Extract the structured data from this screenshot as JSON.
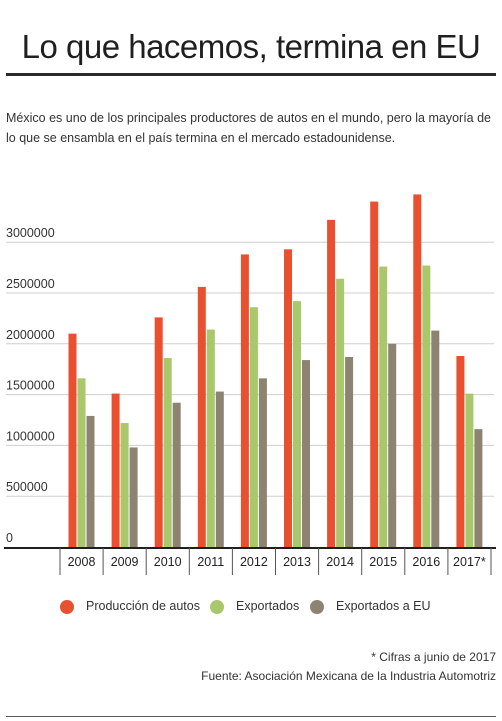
{
  "title": "Lo que hacemos, termina en EU",
  "subtitle": "México es uno de los principales productores de autos en el mundo, pero la mayoría de lo que se ensambla en el país termina en el mercado estadounidense.",
  "chart_data": {
    "type": "bar",
    "categories": [
      "2008",
      "2009",
      "2010",
      "2011",
      "2012",
      "2013",
      "2014",
      "2015",
      "2016",
      "2017*"
    ],
    "series": [
      {
        "name": "Producción de autos",
        "color": "#e8502f",
        "values": [
          2100000,
          1510000,
          2260000,
          2560000,
          2880000,
          2930000,
          3220000,
          3400000,
          3470000,
          1880000
        ]
      },
      {
        "name": "Exportados",
        "color": "#a9c76b",
        "values": [
          1660000,
          1220000,
          1860000,
          2140000,
          2360000,
          2420000,
          2640000,
          2760000,
          2770000,
          1510000
        ]
      },
      {
        "name": "Exportados a EU",
        "color": "#8d8373",
        "values": [
          1290000,
          980000,
          1420000,
          1530000,
          1660000,
          1840000,
          1870000,
          2000000,
          2130000,
          1160000
        ]
      }
    ],
    "yticks": [
      "0",
      "500000",
      "1000000",
      "1500000",
      "2000000",
      "2500000",
      "3000000"
    ],
    "ylim": [
      0,
      3500000
    ],
    "grid": true,
    "legend": "bottom"
  },
  "note": "* Cifras a junio de 2017",
  "source": "Fuente: Asociación Mexicana de la Industria Automotriz"
}
